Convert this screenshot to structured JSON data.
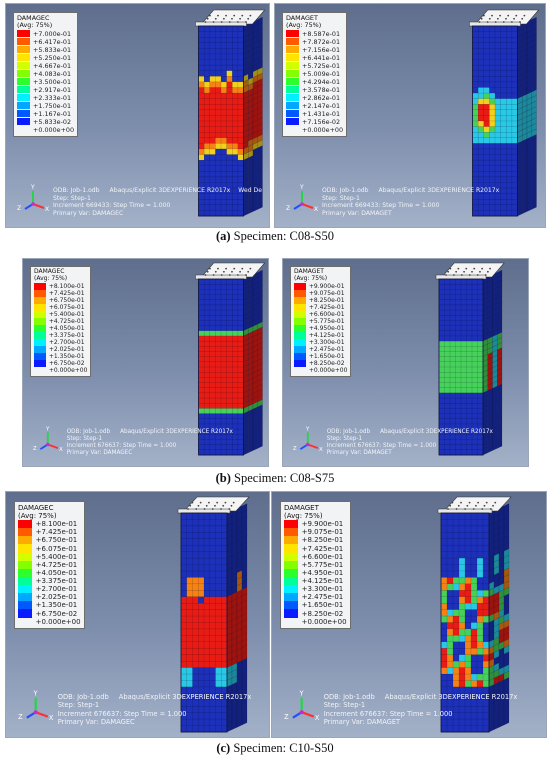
{
  "legend_colors": [
    "#ff0000",
    "#ff5a00",
    "#ffaa00",
    "#ffe400",
    "#d2ff00",
    "#84ff00",
    "#2dff2d",
    "#00ff9a",
    "#00f0ff",
    "#00a8ff",
    "#0058ff",
    "#0a1cff"
  ],
  "triad": {
    "y": "Y",
    "z": "Z",
    "x": "X"
  },
  "info": {
    "odb": "ODB: Job-1.odb",
    "solver": "Abaqus/Explicit 3DEXPERIENCE R2017x",
    "step": "Step: Step-1"
  },
  "rows": [
    {
      "caption_letter": "(a)",
      "caption_text": " Specimen: C08-S50",
      "panels": [
        {
          "var": "DAMAGEC",
          "avg": "(Avg: 75%)",
          "values": [
            "+7.000e-01",
            "+6.417e-01",
            "+5.833e-01",
            "+5.250e-01",
            "+4.667e-01",
            "+4.083e-01",
            "+3.500e-01",
            "+2.917e-01",
            "+2.333e-01",
            "+1.750e-01",
            "+1.167e-01",
            "+5.833e-02",
            "+0.000e+00"
          ],
          "increment": "Increment    669433: Step Time =    1.000",
          "primary": "Primary Var: DAMAGEC",
          "extra": "Wed De"
        },
        {
          "var": "DAMAGET",
          "avg": "(Avg: 75%)",
          "values": [
            "+8.587e-01",
            "+7.872e-01",
            "+7.156e-01",
            "+6.441e-01",
            "+5.725e-01",
            "+5.009e-01",
            "+4.294e-01",
            "+3.578e-01",
            "+2.862e-01",
            "+2.147e-01",
            "+1.431e-01",
            "+7.156e-02",
            "+0.000e+00"
          ],
          "increment": "Increment    669433: Step Time =    1.000",
          "primary": "Primary Var: DAMAGET",
          "extra": ""
        }
      ]
    },
    {
      "caption_letter": "(b)",
      "caption_text": " Specimen: C08-S75",
      "panels": [
        {
          "var": "DAMAGEC",
          "avg": "(Avg: 75%)",
          "values": [
            "+8.100e-01",
            "+7.425e-01",
            "+6.750e-01",
            "+6.075e-01",
            "+5.400e-01",
            "+4.725e-01",
            "+4.050e-01",
            "+3.375e-01",
            "+2.700e-01",
            "+2.025e-01",
            "+1.350e-01",
            "+6.750e-02",
            "+0.000e+00"
          ],
          "increment": "Increment    676637: Step Time =    1.000",
          "primary": "Primary Var: DAMAGEC",
          "extra": ""
        },
        {
          "var": "DAMAGET",
          "avg": "(Avg: 75%)",
          "values": [
            "+9.900e-01",
            "+9.075e-01",
            "+8.250e-01",
            "+7.425e-01",
            "+6.600e-01",
            "+5.775e-01",
            "+4.950e-01",
            "+4.125e-01",
            "+3.300e-01",
            "+2.475e-01",
            "+1.650e-01",
            "+8.250e-02",
            "+0.000e+00"
          ],
          "increment": "Increment    676637: Step Time =    1.000",
          "primary": "Primary Var: DAMAGET",
          "extra": ""
        }
      ]
    },
    {
      "caption_letter": "(c)",
      "caption_text": " Specimen: C10-S50",
      "panels": [
        {
          "var": "DAMAGEC",
          "avg": "(Avg: 75%)",
          "values": [
            "+8.100e-01",
            "+7.425e-01",
            "+6.750e-01",
            "+6.075e-01",
            "+5.400e-01",
            "+4.725e-01",
            "+4.050e-01",
            "+3.375e-01",
            "+2.700e-01",
            "+2.025e-01",
            "+1.350e-01",
            "+6.750e-02",
            "+0.000e+00"
          ],
          "increment": "Increment    676637: Step Time =    1.000",
          "primary": "Primary Var: DAMAGEC",
          "extra": ""
        },
        {
          "var": "DAMAGET",
          "avg": "(Avg: 75%)",
          "values": [
            "+9.900e-01",
            "+9.075e-01",
            "+8.250e-01",
            "+7.425e-01",
            "+6.600e-01",
            "+5.775e-01",
            "+4.950e-01",
            "+4.125e-01",
            "+3.300e-01",
            "+2.475e-01",
            "+1.650e-01",
            "+8.250e-02",
            "+0.000e+00"
          ],
          "increment": "Increment    676637: Step Time =    1.000",
          "primary": "Primary Var: DAMAGET",
          "extra": ""
        }
      ]
    }
  ]
}
